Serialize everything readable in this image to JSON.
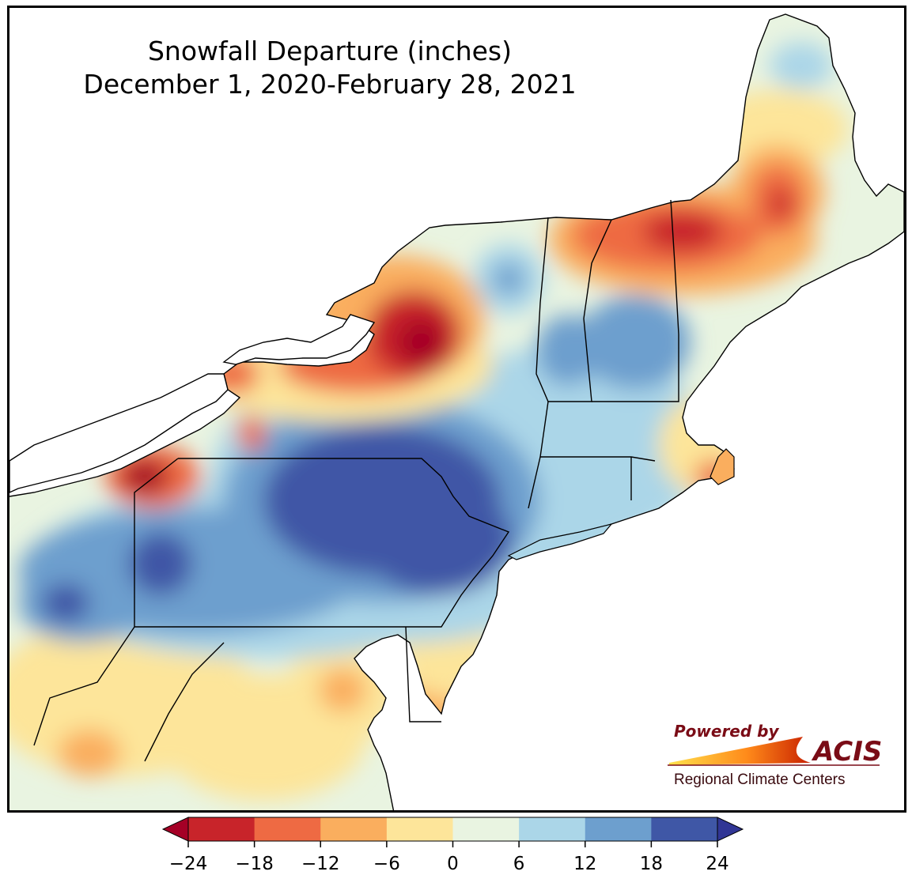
{
  "title": {
    "line1": "Snowfall Departure (inches)",
    "line2": "December 1, 2020-February 28, 2021"
  },
  "logo": {
    "powered_by": "Powered by",
    "brand": "ACIS",
    "subtitle": "Regional Climate Centers"
  },
  "legend": {
    "ticks": [
      "−24",
      "−18",
      "−12",
      "−6",
      "0",
      "6",
      "12",
      "18",
      "24"
    ],
    "colors": [
      "#c8242a",
      "#ee6a43",
      "#faae5e",
      "#fde59a",
      "#e9f4e1",
      "#abd6e8",
      "#6d9fce",
      "#3f57a6"
    ],
    "under_color": "#a50026",
    "over_color": "#313695"
  },
  "colors": {
    "deep_red": "#a50026",
    "red": "#c8242a",
    "orange": "#ee6a43",
    "light_orange": "#faae5e",
    "yellow": "#fde59a",
    "pale_green": "#e9f4e1",
    "light_blue": "#abd6e8",
    "blue": "#6d9fce",
    "dark_blue": "#3f57a6",
    "navy": "#313695"
  }
}
